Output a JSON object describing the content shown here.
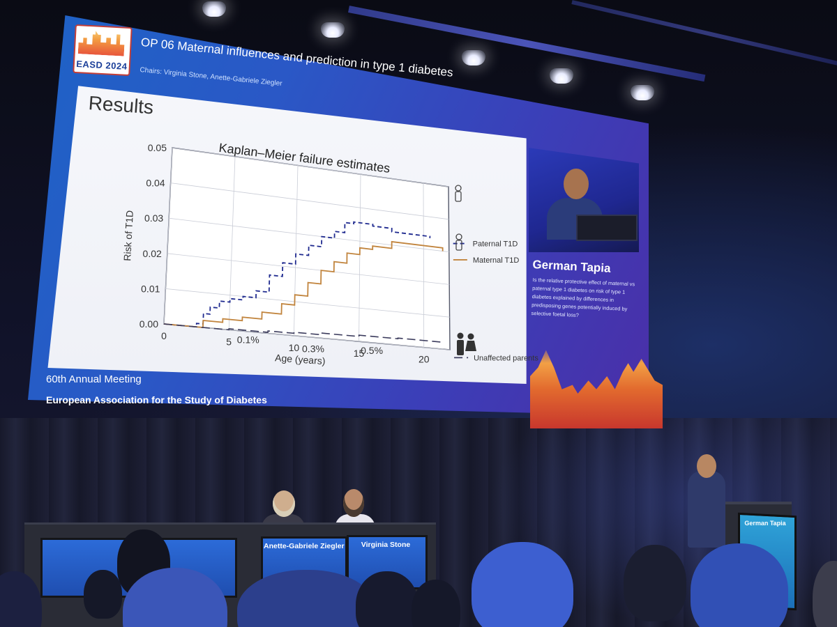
{
  "slide": {
    "logo_text": "EASD 2024",
    "title": "OP 06 Maternal influences and prediction in type 1 diabetes",
    "chairs": "Chairs: Virginia Stone, Anette-Gabriele Ziegler",
    "heading": "Results",
    "footer_line1": "60th Annual Meeting",
    "footer_line2": "European Association for the Study of Diabetes"
  },
  "speaker": {
    "name": "German Tapia",
    "abstract": "Is the relative protective effect of maternal vs paternal type 1 diabetes on risk of type 1 diabetes explained by differences in predisposing genes potentially induced by selective foetal loss?"
  },
  "stage": {
    "chair_left_label": "Anette-Gabriele Ziegler",
    "chair_right_label": "Virginia Stone",
    "podium_label": "German Tapia"
  },
  "colors": {
    "paternal": "#1f2a8f",
    "maternal": "#c1843d",
    "unaffected": "#3b3b5c",
    "slide_blue": "#2a58c6"
  },
  "chart_data": {
    "type": "line",
    "title": "Kaplan–Meier failure estimates",
    "xlabel": "Age (years)",
    "ylabel": "Risk of T1D",
    "xlim": [
      0,
      22
    ],
    "ylim": [
      0,
      0.05
    ],
    "xticks": [
      "0",
      "5",
      "10",
      "15",
      "20"
    ],
    "yticks": [
      "0.00",
      "0.01",
      "0.02",
      "0.03",
      "0.04",
      "0.05"
    ],
    "grid": true,
    "legend_position": "right",
    "series": [
      {
        "name": "Paternal T1D",
        "style": "dashed",
        "x": [
          0,
          1.5,
          2.5,
          3.0,
          3.5,
          4.2,
          5.0,
          6.0,
          7.0,
          8.0,
          9.0,
          10.0,
          11.0,
          12.0,
          13.0,
          13.8,
          14.5,
          16.0,
          17.5,
          20.5
        ],
        "y": [
          0,
          0,
          0.001,
          0.004,
          0.006,
          0.008,
          0.009,
          0.01,
          0.012,
          0.017,
          0.021,
          0.024,
          0.027,
          0.03,
          0.032,
          0.035,
          0.0355,
          0.035,
          0.034,
          0.0335
        ]
      },
      {
        "name": "Maternal T1D",
        "style": "solid",
        "x": [
          0,
          1.5,
          3.0,
          4.5,
          6.0,
          7.5,
          9.0,
          10.0,
          11.0,
          12.0,
          13.0,
          14.0,
          15.0,
          16.0,
          17.5,
          21.5
        ],
        "y": [
          0,
          0,
          0.002,
          0.003,
          0.004,
          0.006,
          0.009,
          0.012,
          0.016,
          0.02,
          0.023,
          0.026,
          0.028,
          0.029,
          0.031,
          0.03
        ]
      },
      {
        "name": "Unaffected parents",
        "style": "long-dash",
        "x": [
          0,
          2,
          5,
          8,
          10,
          12,
          15,
          18,
          21.5
        ],
        "y": [
          0,
          0,
          0.0003,
          0.0007,
          0.001,
          0.0015,
          0.0019,
          0.0021,
          0.0018
        ]
      }
    ],
    "annotations": [
      {
        "text": "0.1%",
        "x": 6.5,
        "y": -0.0025
      },
      {
        "text": "0.3%",
        "x": 11.5,
        "y": -0.0035
      },
      {
        "text": "0.5%",
        "x": 16.0,
        "y": -0.0025
      }
    ]
  }
}
